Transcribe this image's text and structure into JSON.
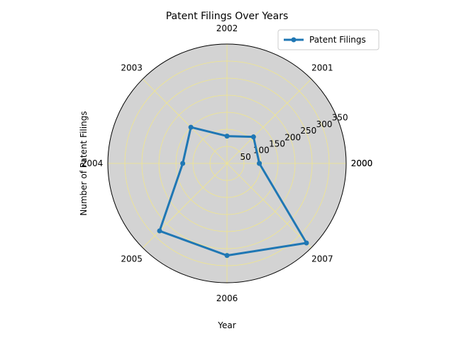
{
  "chart_data": {
    "type": "radar",
    "title": "Patent Filings Over Years",
    "xlabel": "Year",
    "ylabel": "Number of Patent Filings",
    "angle_labels": [
      "2000",
      "2001",
      "2002",
      "2003",
      "2004",
      "2005",
      "2006",
      "2007",
      "2000"
    ],
    "radial_ticks": [
      50,
      100,
      150,
      200,
      250,
      300,
      350
    ],
    "rlim": [
      0,
      350
    ],
    "grid": true,
    "grid_color": "#f0e68c",
    "plot_background": "#d3d3d3",
    "legend_position": "upper-right",
    "series": [
      {
        "name": "Patent Filings",
        "color": "#1f77b4",
        "marker": "circle",
        "x": [
          "2000",
          "2001",
          "2002",
          "2003",
          "2004",
          "2005",
          "2006",
          "2007",
          "2000"
        ],
        "values": [
          95,
          110,
          80,
          150,
          130,
          280,
          270,
          330,
          95
        ]
      }
    ]
  }
}
